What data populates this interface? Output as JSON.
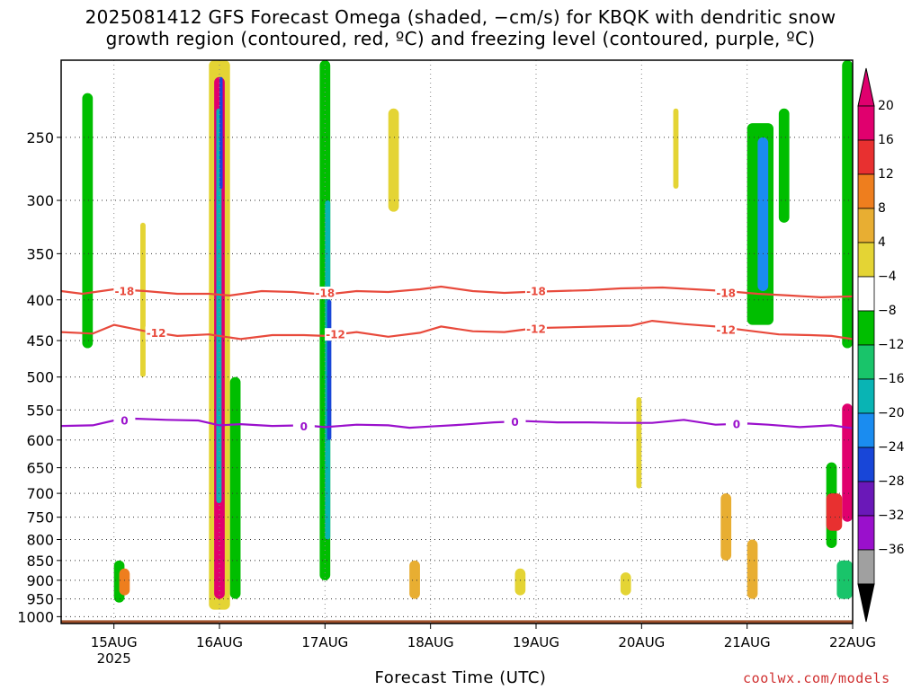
{
  "title_line1": "2025081412 GFS Forecast Omega (shaded, −cm/s) for KBQK with dendritic snow",
  "title_line2": "growth region (contoured, red, ºC) and freezing level (contoured, purple, ºC)",
  "credit": "coolwx.com/models",
  "chart_data": {
    "type": "heatmap",
    "title": "2025081412 GFS Forecast Omega (shaded, −cm/s) for KBQK with dendritic snow growth region (contoured, red, ºC) and freezing level (contoured, purple, ºC)",
    "xlabel": "Forecast Time (UTC)",
    "ylabel": "",
    "x_ticks": [
      "15AUG",
      "16AUG",
      "17AUG",
      "18AUG",
      "19AUG",
      "20AUG",
      "21AUG",
      "22AUG"
    ],
    "x_tick_day": [
      15,
      16,
      17,
      18,
      19,
      20,
      21,
      22
    ],
    "x_year_label": "2025",
    "xlim_day": [
      14.5,
      22.0
    ],
    "y_ticks": [
      250,
      300,
      350,
      400,
      450,
      500,
      550,
      600,
      650,
      700,
      750,
      800,
      850,
      900,
      950,
      1000
    ],
    "ylim_hpa": [
      200,
      1020
    ],
    "y_scale": "log-pressure",
    "grid": true,
    "colorbar": {
      "labels": [
        "20",
        "16",
        "12",
        "8",
        "4",
        "−4",
        "−8",
        "−12",
        "−16",
        "−20",
        "−24",
        "−28",
        "−32",
        "−36"
      ],
      "colors": [
        "#e0006e",
        "#e83030",
        "#ee7e1e",
        "#e8ae32",
        "#e4d434",
        "#ffffff",
        "#00be00",
        "#19c46a",
        "#09b4b4",
        "#1a8cf0",
        "#1846d8",
        "#6a18b8",
        "#9a10cc",
        "#a0a0a0"
      ],
      "over_color": "#e0006e",
      "under_color": "#000000"
    },
    "ground_color": "#a0522d",
    "contours": [
      {
        "value": "-18",
        "color": "#e84a3c",
        "points": [
          [
            14.5,
            390
          ],
          [
            14.7,
            393
          ],
          [
            15.0,
            388
          ],
          [
            15.3,
            390
          ],
          [
            15.6,
            393
          ],
          [
            15.9,
            393
          ],
          [
            16.1,
            395
          ],
          [
            16.4,
            390
          ],
          [
            16.7,
            391
          ],
          [
            17.0,
            394
          ],
          [
            17.3,
            390
          ],
          [
            17.6,
            391
          ],
          [
            17.9,
            388
          ],
          [
            18.1,
            385
          ],
          [
            18.4,
            390
          ],
          [
            18.7,
            392
          ],
          [
            18.9,
            391
          ],
          [
            19.2,
            390
          ],
          [
            19.5,
            389
          ],
          [
            19.8,
            387
          ],
          [
            20.2,
            386
          ],
          [
            20.5,
            388
          ],
          [
            20.8,
            390
          ],
          [
            21.1,
            393
          ],
          [
            21.4,
            395
          ],
          [
            21.7,
            397
          ],
          [
            22.0,
            396
          ]
        ],
        "labels": [
          [
            15.1,
            390
          ],
          [
            17.0,
            392
          ],
          [
            19.0,
            390
          ],
          [
            20.8,
            392
          ]
        ]
      },
      {
        "value": "-12",
        "color": "#e84a3c",
        "points": [
          [
            14.5,
            439
          ],
          [
            14.8,
            441
          ],
          [
            15.0,
            430
          ],
          [
            15.3,
            438
          ],
          [
            15.6,
            444
          ],
          [
            15.9,
            442
          ],
          [
            16.2,
            448
          ],
          [
            16.5,
            443
          ],
          [
            16.8,
            443
          ],
          [
            17.0,
            444
          ],
          [
            17.3,
            439
          ],
          [
            17.6,
            445
          ],
          [
            17.9,
            440
          ],
          [
            18.1,
            432
          ],
          [
            18.4,
            438
          ],
          [
            18.7,
            439
          ],
          [
            19.0,
            434
          ],
          [
            19.3,
            433
          ],
          [
            19.6,
            432
          ],
          [
            19.9,
            431
          ],
          [
            20.1,
            425
          ],
          [
            20.4,
            429
          ],
          [
            20.7,
            432
          ],
          [
            21.0,
            437
          ],
          [
            21.3,
            442
          ],
          [
            21.6,
            443
          ],
          [
            21.8,
            444
          ],
          [
            22.0,
            448
          ]
        ],
        "labels": [
          [
            15.4,
            440
          ],
          [
            17.1,
            442
          ],
          [
            19.0,
            435
          ],
          [
            20.8,
            436
          ]
        ]
      },
      {
        "value": "0",
        "color": "#9a10cc",
        "points": [
          [
            14.5,
            576
          ],
          [
            14.8,
            575
          ],
          [
            15.0,
            567
          ],
          [
            15.2,
            564
          ],
          [
            15.5,
            566
          ],
          [
            15.8,
            567
          ],
          [
            16.0,
            575
          ],
          [
            16.2,
            573
          ],
          [
            16.5,
            576
          ],
          [
            16.8,
            575
          ],
          [
            17.0,
            578
          ],
          [
            17.3,
            574
          ],
          [
            17.6,
            575
          ],
          [
            17.8,
            579
          ],
          [
            18.0,
            577
          ],
          [
            18.3,
            574
          ],
          [
            18.6,
            570
          ],
          [
            18.9,
            568
          ],
          [
            19.2,
            570
          ],
          [
            19.5,
            570
          ],
          [
            19.8,
            571
          ],
          [
            20.1,
            571
          ],
          [
            20.4,
            566
          ],
          [
            20.7,
            574
          ],
          [
            21.0,
            572
          ],
          [
            21.2,
            574
          ],
          [
            21.5,
            578
          ],
          [
            21.8,
            575
          ],
          [
            22.0,
            580
          ]
        ],
        "labels": [
          [
            15.1,
            567
          ],
          [
            16.8,
            577
          ],
          [
            18.8,
            569
          ],
          [
            20.9,
            573
          ]
        ]
      }
    ],
    "omega_regions": [
      {
        "t": [
          15.0,
          15.1
        ],
        "p": [
          850,
          960
        ],
        "color": "#00be00"
      },
      {
        "t": [
          15.05,
          15.15
        ],
        "p": [
          870,
          940
        ],
        "color": "#ee7e1e"
      },
      {
        "t": [
          14.7,
          14.8
        ],
        "p": [
          220,
          460
        ],
        "color": "#00be00"
      },
      {
        "t": [
          15.25,
          15.3
        ],
        "p": [
          320,
          500
        ],
        "color": "#e4d434"
      },
      {
        "t": [
          15.9,
          16.1
        ],
        "p": [
          200,
          980
        ],
        "color": "#e4d434"
      },
      {
        "t": [
          15.95,
          16.05
        ],
        "p": [
          210,
          950
        ],
        "color": "#e0006e"
      },
      {
        "t": [
          15.97,
          16.02
        ],
        "p": [
          230,
          720
        ],
        "color": "#09b4b4"
      },
      {
        "t": [
          16.0,
          16.03
        ],
        "p": [
          210,
          290
        ],
        "color": "#1846d8"
      },
      {
        "t": [
          16.1,
          16.2
        ],
        "p": [
          500,
          950
        ],
        "color": "#00be00"
      },
      {
        "t": [
          16.95,
          17.05
        ],
        "p": [
          200,
          900
        ],
        "color": "#00be00"
      },
      {
        "t": [
          17.0,
          17.05
        ],
        "p": [
          300,
          800
        ],
        "color": "#09b4b4"
      },
      {
        "t": [
          17.02,
          17.06
        ],
        "p": [
          400,
          600
        ],
        "color": "#1846d8"
      },
      {
        "t": [
          17.6,
          17.7
        ],
        "p": [
          230,
          310
        ],
        "color": "#e4d434"
      },
      {
        "t": [
          17.8,
          17.9
        ],
        "p": [
          850,
          950
        ],
        "color": "#e8ae32"
      },
      {
        "t": [
          18.8,
          18.9
        ],
        "p": [
          870,
          940
        ],
        "color": "#e4d434"
      },
      {
        "t": [
          19.8,
          19.9
        ],
        "p": [
          880,
          940
        ],
        "color": "#e4d434"
      },
      {
        "t": [
          19.95,
          20.0
        ],
        "p": [
          530,
          690
        ],
        "color": "#e4d434"
      },
      {
        "t": [
          20.3,
          20.35
        ],
        "p": [
          230,
          290
        ],
        "color": "#e4d434"
      },
      {
        "t": [
          20.75,
          20.85
        ],
        "p": [
          700,
          850
        ],
        "color": "#e8ae32"
      },
      {
        "t": [
          21.0,
          21.25
        ],
        "p": [
          240,
          430
        ],
        "color": "#00be00"
      },
      {
        "t": [
          21.1,
          21.2
        ],
        "p": [
          250,
          390
        ],
        "color": "#1a8cf0"
      },
      {
        "t": [
          21.0,
          21.1
        ],
        "p": [
          800,
          950
        ],
        "color": "#e8ae32"
      },
      {
        "t": [
          21.3,
          21.4
        ],
        "p": [
          230,
          320
        ],
        "color": "#00be00"
      },
      {
        "t": [
          21.75,
          21.85
        ],
        "p": [
          640,
          820
        ],
        "color": "#00be00"
      },
      {
        "t": [
          21.9,
          22.0
        ],
        "p": [
          200,
          460
        ],
        "color": "#00be00"
      },
      {
        "t": [
          21.9,
          22.0
        ],
        "p": [
          540,
          760
        ],
        "color": "#e0006e"
      },
      {
        "t": [
          21.75,
          21.9
        ],
        "p": [
          700,
          780
        ],
        "color": "#e83030"
      },
      {
        "t": [
          21.85,
          22.0
        ],
        "p": [
          850,
          950
        ],
        "color": "#19c46a"
      }
    ]
  }
}
